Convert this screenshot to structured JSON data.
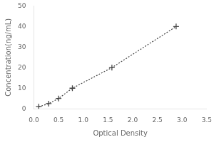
{
  "chart_data": {
    "type": "line",
    "x": [
      0.1,
      0.3,
      0.5,
      0.78,
      1.58,
      2.88
    ],
    "values": [
      1.0,
      2.5,
      5.0,
      10.0,
      20.0,
      40.0
    ],
    "xlabel": "Optical Density",
    "ylabel": "Concentration(ng/mL)",
    "xlim": [
      0,
      3.5
    ],
    "ylim": [
      0,
      50
    ],
    "xticks": [
      {
        "value": 0,
        "label": "0.0"
      },
      0.5,
      {
        "value": 1.0,
        "label": "1.0"
      },
      1.5,
      {
        "value": 2.0,
        "label": "2.0"
      },
      2.5,
      {
        "value": 3.0,
        "label": "3.0"
      },
      3.5
    ],
    "yticks": [
      0,
      10,
      20,
      30,
      40,
      50
    ],
    "color": "#444444",
    "marker": "plus",
    "line_style": "dotted",
    "grid": false
  }
}
